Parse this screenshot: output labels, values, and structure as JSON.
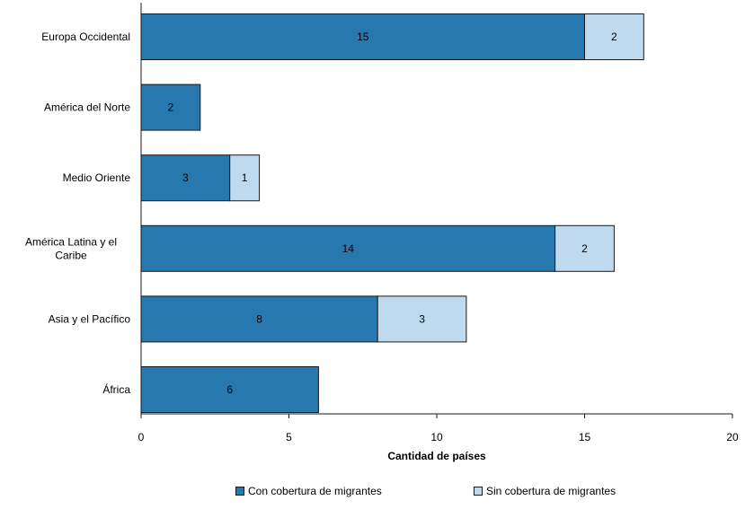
{
  "chart_data": {
    "type": "bar",
    "orientation": "horizontal",
    "stacked": true,
    "categories": [
      "Europa Occidental",
      "América del Norte",
      "Medio Oriente",
      "América Latina y el Caribe",
      "Asia y el Pacífico",
      "África"
    ],
    "category_label_lines": [
      [
        "Europa Occidental"
      ],
      [
        "América del Norte"
      ],
      [
        "Medio Oriente"
      ],
      [
        "América Latina y el",
        "Caribe"
      ],
      [
        "Asia y el Pacífico"
      ],
      [
        "África"
      ]
    ],
    "series": [
      {
        "name": "Con cobertura de migrantes",
        "color": "#2878b0",
        "values": [
          15,
          2,
          3,
          14,
          8,
          6
        ]
      },
      {
        "name": "Sin cobertura de migrantes",
        "color": "#bfd9ef",
        "values": [
          2,
          null,
          1,
          2,
          3,
          null
        ]
      }
    ],
    "xlabel": "Cantidad de países",
    "xlim": [
      0,
      20
    ],
    "xticks": [
      0,
      5,
      10,
      15,
      20
    ],
    "grid": false,
    "legend_position": "bottom"
  }
}
